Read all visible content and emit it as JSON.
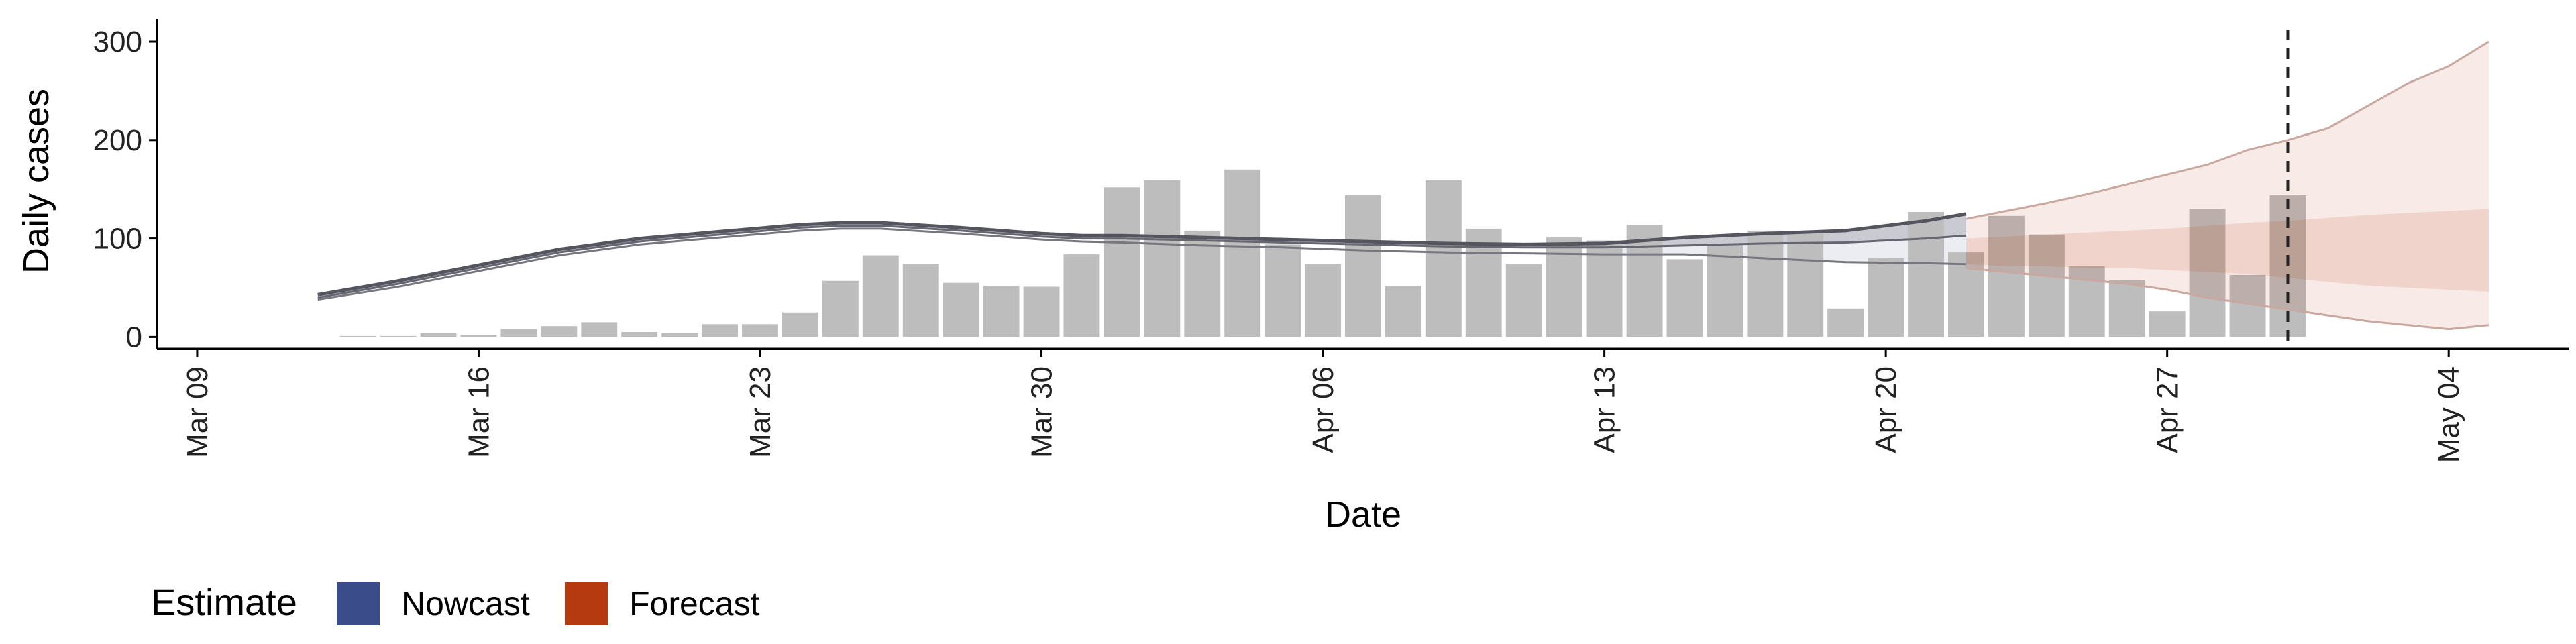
{
  "chart_data": {
    "type": "bar",
    "xlabel": "Date",
    "ylabel": "Daily cases",
    "ylim": [
      -12,
      315
    ],
    "yticks": [
      0,
      100,
      200,
      300
    ],
    "x_range": [
      "2020-03-08",
      "2020-05-07"
    ],
    "xticks": [
      "2020-03-09",
      "2020-03-16",
      "2020-03-23",
      "2020-03-30",
      "2020-04-06",
      "2020-04-13",
      "2020-04-20",
      "2020-04-27",
      "2020-05-04"
    ],
    "xtick_labels": [
      "Mar 09",
      "Mar 16",
      "Mar 23",
      "Mar 30",
      "Apr 06",
      "Apr 13",
      "Apr 20",
      "Apr 27",
      "May 04"
    ],
    "grid": false,
    "bars": {
      "color": "#bdbdbd",
      "dates": [
        "2020-03-13",
        "2020-03-14",
        "2020-03-15",
        "2020-03-16",
        "2020-03-17",
        "2020-03-18",
        "2020-03-19",
        "2020-03-20",
        "2020-03-21",
        "2020-03-22",
        "2020-03-23",
        "2020-03-24",
        "2020-03-25",
        "2020-03-26",
        "2020-03-27",
        "2020-03-28",
        "2020-03-29",
        "2020-03-30",
        "2020-03-31",
        "2020-04-01",
        "2020-04-02",
        "2020-04-03",
        "2020-04-04",
        "2020-04-05",
        "2020-04-06",
        "2020-04-07",
        "2020-04-08",
        "2020-04-09",
        "2020-04-10",
        "2020-04-11",
        "2020-04-12",
        "2020-04-13",
        "2020-04-14",
        "2020-04-15",
        "2020-04-16",
        "2020-04-17",
        "2020-04-18",
        "2020-04-19",
        "2020-04-20",
        "2020-04-21",
        "2020-04-22",
        "2020-04-23",
        "2020-04-24",
        "2020-04-25",
        "2020-04-26",
        "2020-04-27",
        "2020-04-28",
        "2020-04-29",
        "2020-04-30"
      ],
      "values": [
        1,
        1,
        4,
        2,
        8,
        11,
        15,
        5,
        4,
        13,
        13,
        25,
        57,
        83,
        74,
        55,
        52,
        51,
        84,
        152,
        159,
        108,
        170,
        94,
        74,
        144,
        52,
        159,
        110,
        74,
        101,
        98,
        114,
        79,
        94,
        108,
        105,
        29,
        80,
        127,
        86,
        123,
        104,
        72,
        58,
        26,
        130,
        63,
        144
      ]
    },
    "estimates": {
      "dates": [
        "2020-03-12",
        "2020-03-14",
        "2020-03-16",
        "2020-03-18",
        "2020-03-20",
        "2020-03-22",
        "2020-03-24",
        "2020-03-25",
        "2020-03-26",
        "2020-03-28",
        "2020-03-30",
        "2020-03-31",
        "2020-04-01",
        "2020-04-03",
        "2020-04-05",
        "2020-04-07",
        "2020-04-09",
        "2020-04-11",
        "2020-04-13",
        "2020-04-15",
        "2020-04-17",
        "2020-04-19",
        "2020-04-21",
        "2020-04-22"
      ],
      "median": [
        40,
        54,
        70,
        86,
        97,
        104,
        111,
        113,
        113,
        108,
        102,
        100,
        100,
        98,
        96,
        94,
        92,
        91,
        91,
        93,
        95,
        96,
        100,
        103
      ],
      "upper": [
        43,
        57,
        73,
        89,
        100,
        107,
        114,
        116,
        116,
        111,
        105,
        103,
        103,
        101,
        99,
        97,
        95,
        94,
        95,
        101,
        105,
        108,
        118,
        125
      ],
      "lower": [
        38,
        51,
        67,
        83,
        94,
        101,
        108,
        110,
        110,
        105,
        99,
        97,
        96,
        93,
        91,
        88,
        86,
        85,
        84,
        84,
        80,
        76,
        75,
        74
      ],
      "nowcast_band_from": "2020-04-13"
    },
    "forecast": {
      "dates": [
        "2020-04-22",
        "2020-04-23",
        "2020-04-24",
        "2020-04-25",
        "2020-04-26",
        "2020-04-27",
        "2020-04-28",
        "2020-04-29",
        "2020-04-30",
        "2020-05-01",
        "2020-05-02",
        "2020-05-03",
        "2020-05-04",
        "2020-05-05"
      ],
      "upper90": [
        120,
        128,
        136,
        145,
        155,
        165,
        175,
        190,
        200,
        212,
        235,
        258,
        275,
        300
      ],
      "upper50": [
        100,
        102,
        104,
        106,
        108,
        110,
        113,
        116,
        118,
        121,
        124,
        126,
        128,
        130
      ],
      "median": [
        90,
        88,
        88,
        86,
        86,
        84,
        84,
        86,
        86,
        88,
        88,
        90,
        90,
        90
      ],
      "lower50": [
        74,
        72,
        72,
        70,
        70,
        68,
        66,
        64,
        60,
        56,
        52,
        50,
        48,
        46
      ],
      "lower90": [
        70,
        66,
        62,
        58,
        54,
        48,
        40,
        34,
        28,
        22,
        16,
        12,
        8,
        12
      ]
    },
    "dashed_line_date": "2020-04-30",
    "legend": {
      "title": "Estimate",
      "position": "bottom-left",
      "items": [
        {
          "label": "Nowcast",
          "color": "#3a4c8a"
        },
        {
          "label": "Forecast",
          "color": "#b63a0f"
        }
      ]
    }
  }
}
